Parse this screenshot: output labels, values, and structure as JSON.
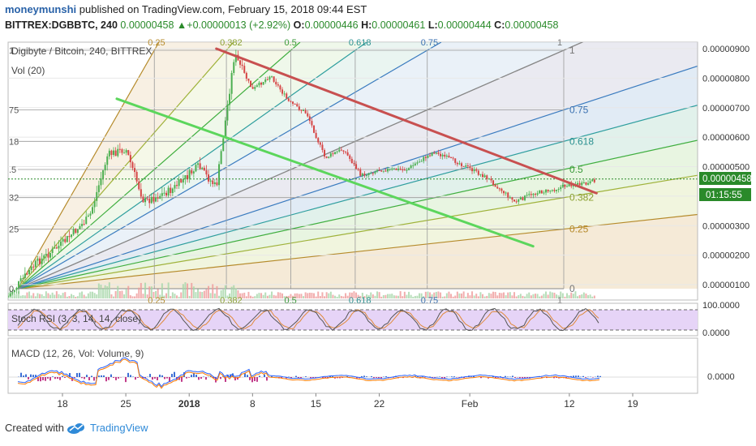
{
  "header": {
    "user": "moneymunshi",
    "published": "published on TradingView.com, February 15, 2018 09:44 EST",
    "symbol_line": "BITTREX:DGBBTC, 240",
    "last": "0.00000458",
    "arrow": "▲",
    "change": "+0.00000013 (+2.92%)",
    "o_label": "O:",
    "o_val": "0.00000446",
    "h_label": "H:",
    "h_val": "0.00000461",
    "l_label": "L:",
    "l_val": "0.00000444",
    "c_label": "C:",
    "c_val": "0.00000458"
  },
  "main_pane": {
    "title": "Digibyte / Bitcoin, 240, BITTREX",
    "vol_label": "Vol (20)",
    "price_axis": [
      "0.00000900",
      "0.00000800",
      "0.00000700",
      "0.00000600",
      "0.00000500",
      "0.00000400",
      "0.00000300",
      "0.00000200",
      "0.00000100"
    ],
    "last_price_tag": "0.00000458",
    "countdown_tag": "01:15:55"
  },
  "fib": {
    "top_labels": [
      "0.25",
      "0.382",
      "0.5",
      "0.618",
      "0.75",
      "1"
    ],
    "bottom_labels": [
      "0.25",
      "0.382",
      "0.5",
      "0.618",
      "0.75",
      "1"
    ],
    "left_labels": [
      "1",
      "75",
      "18",
      ".5",
      "32",
      "25",
      "0"
    ],
    "right_labels": [
      "1",
      "0.75",
      "0.618",
      "0.5",
      "0.382",
      "0.25",
      "0"
    ]
  },
  "stoch": {
    "label": "Stoch RSI (3, 3, 14, 14, close)",
    "axis": [
      "100.0000",
      "0.0000"
    ]
  },
  "macd": {
    "label": "MACD (12, 26, Vol: Volume, 9)",
    "axis": [
      "0.0000"
    ]
  },
  "time_axis": [
    "18",
    "25",
    "2018",
    "8",
    "15",
    "22",
    "Feb",
    "12",
    "19"
  ],
  "footer": {
    "created": "Created with",
    "brand": "TradingView"
  },
  "chart_data": {
    "type": "candlestick",
    "title": "Digibyte / Bitcoin, 240, BITTREX",
    "ylim": [
      5e-07,
      9.3e-06
    ],
    "x_ticks": [
      "18",
      "25",
      "2018",
      "8",
      "15",
      "22",
      "Feb",
      "12",
      "19"
    ],
    "price_points": [
      {
        "date": "2017-12-12",
        "price": 6e-07
      },
      {
        "date": "2017-12-15",
        "price": 1.7e-06
      },
      {
        "date": "2017-12-18",
        "price": 2.4e-06
      },
      {
        "date": "2017-12-21",
        "price": 3.3e-06
      },
      {
        "date": "2017-12-23",
        "price": 5.4e-06
      },
      {
        "date": "2017-12-25",
        "price": 5.6e-06
      },
      {
        "date": "2017-12-27",
        "price": 3.8e-06
      },
      {
        "date": "2017-12-30",
        "price": 4.2e-06
      },
      {
        "date": "2018-01-02",
        "price": 5e-06
      },
      {
        "date": "2018-01-04",
        "price": 4.3e-06
      },
      {
        "date": "2018-01-06",
        "price": 8.8e-06
      },
      {
        "date": "2018-01-08",
        "price": 7.6e-06
      },
      {
        "date": "2018-01-10",
        "price": 8.1e-06
      },
      {
        "date": "2018-01-12",
        "price": 7.2e-06
      },
      {
        "date": "2018-01-14",
        "price": 6.8e-06
      },
      {
        "date": "2018-01-16",
        "price": 5.3e-06
      },
      {
        "date": "2018-01-18",
        "price": 5.6e-06
      },
      {
        "date": "2018-01-20",
        "price": 4.7e-06
      },
      {
        "date": "2018-01-22",
        "price": 4.9e-06
      },
      {
        "date": "2018-01-25",
        "price": 4.9e-06
      },
      {
        "date": "2018-01-28",
        "price": 5.5e-06
      },
      {
        "date": "2018-01-31",
        "price": 5.1e-06
      },
      {
        "date": "2018-02-03",
        "price": 4.6e-06
      },
      {
        "date": "2018-02-06",
        "price": 3.8e-06
      },
      {
        "date": "2018-02-08",
        "price": 4.1e-06
      },
      {
        "date": "2018-02-10",
        "price": 4.2e-06
      },
      {
        "date": "2018-02-12",
        "price": 4.4e-06
      },
      {
        "date": "2018-02-14",
        "price": 4.4e-06
      },
      {
        "date": "2018-02-15",
        "price": 4.58e-06
      }
    ],
    "trendlines": [
      {
        "color": "#c85050",
        "from": {
          "date": "2018-01-04",
          "price": 9e-06
        },
        "to": {
          "date": "2018-02-15",
          "price": 4.1e-06
        }
      },
      {
        "color": "#5cd65c",
        "from": {
          "date": "2017-12-24",
          "price": 7.3e-06
        },
        "to": {
          "date": "2018-02-08",
          "price": 2.3e-06
        }
      }
    ],
    "fib_fan_levels": [
      0.25,
      0.382,
      0.5,
      0.618,
      0.75,
      1
    ],
    "last_price": 4.58e-06
  }
}
